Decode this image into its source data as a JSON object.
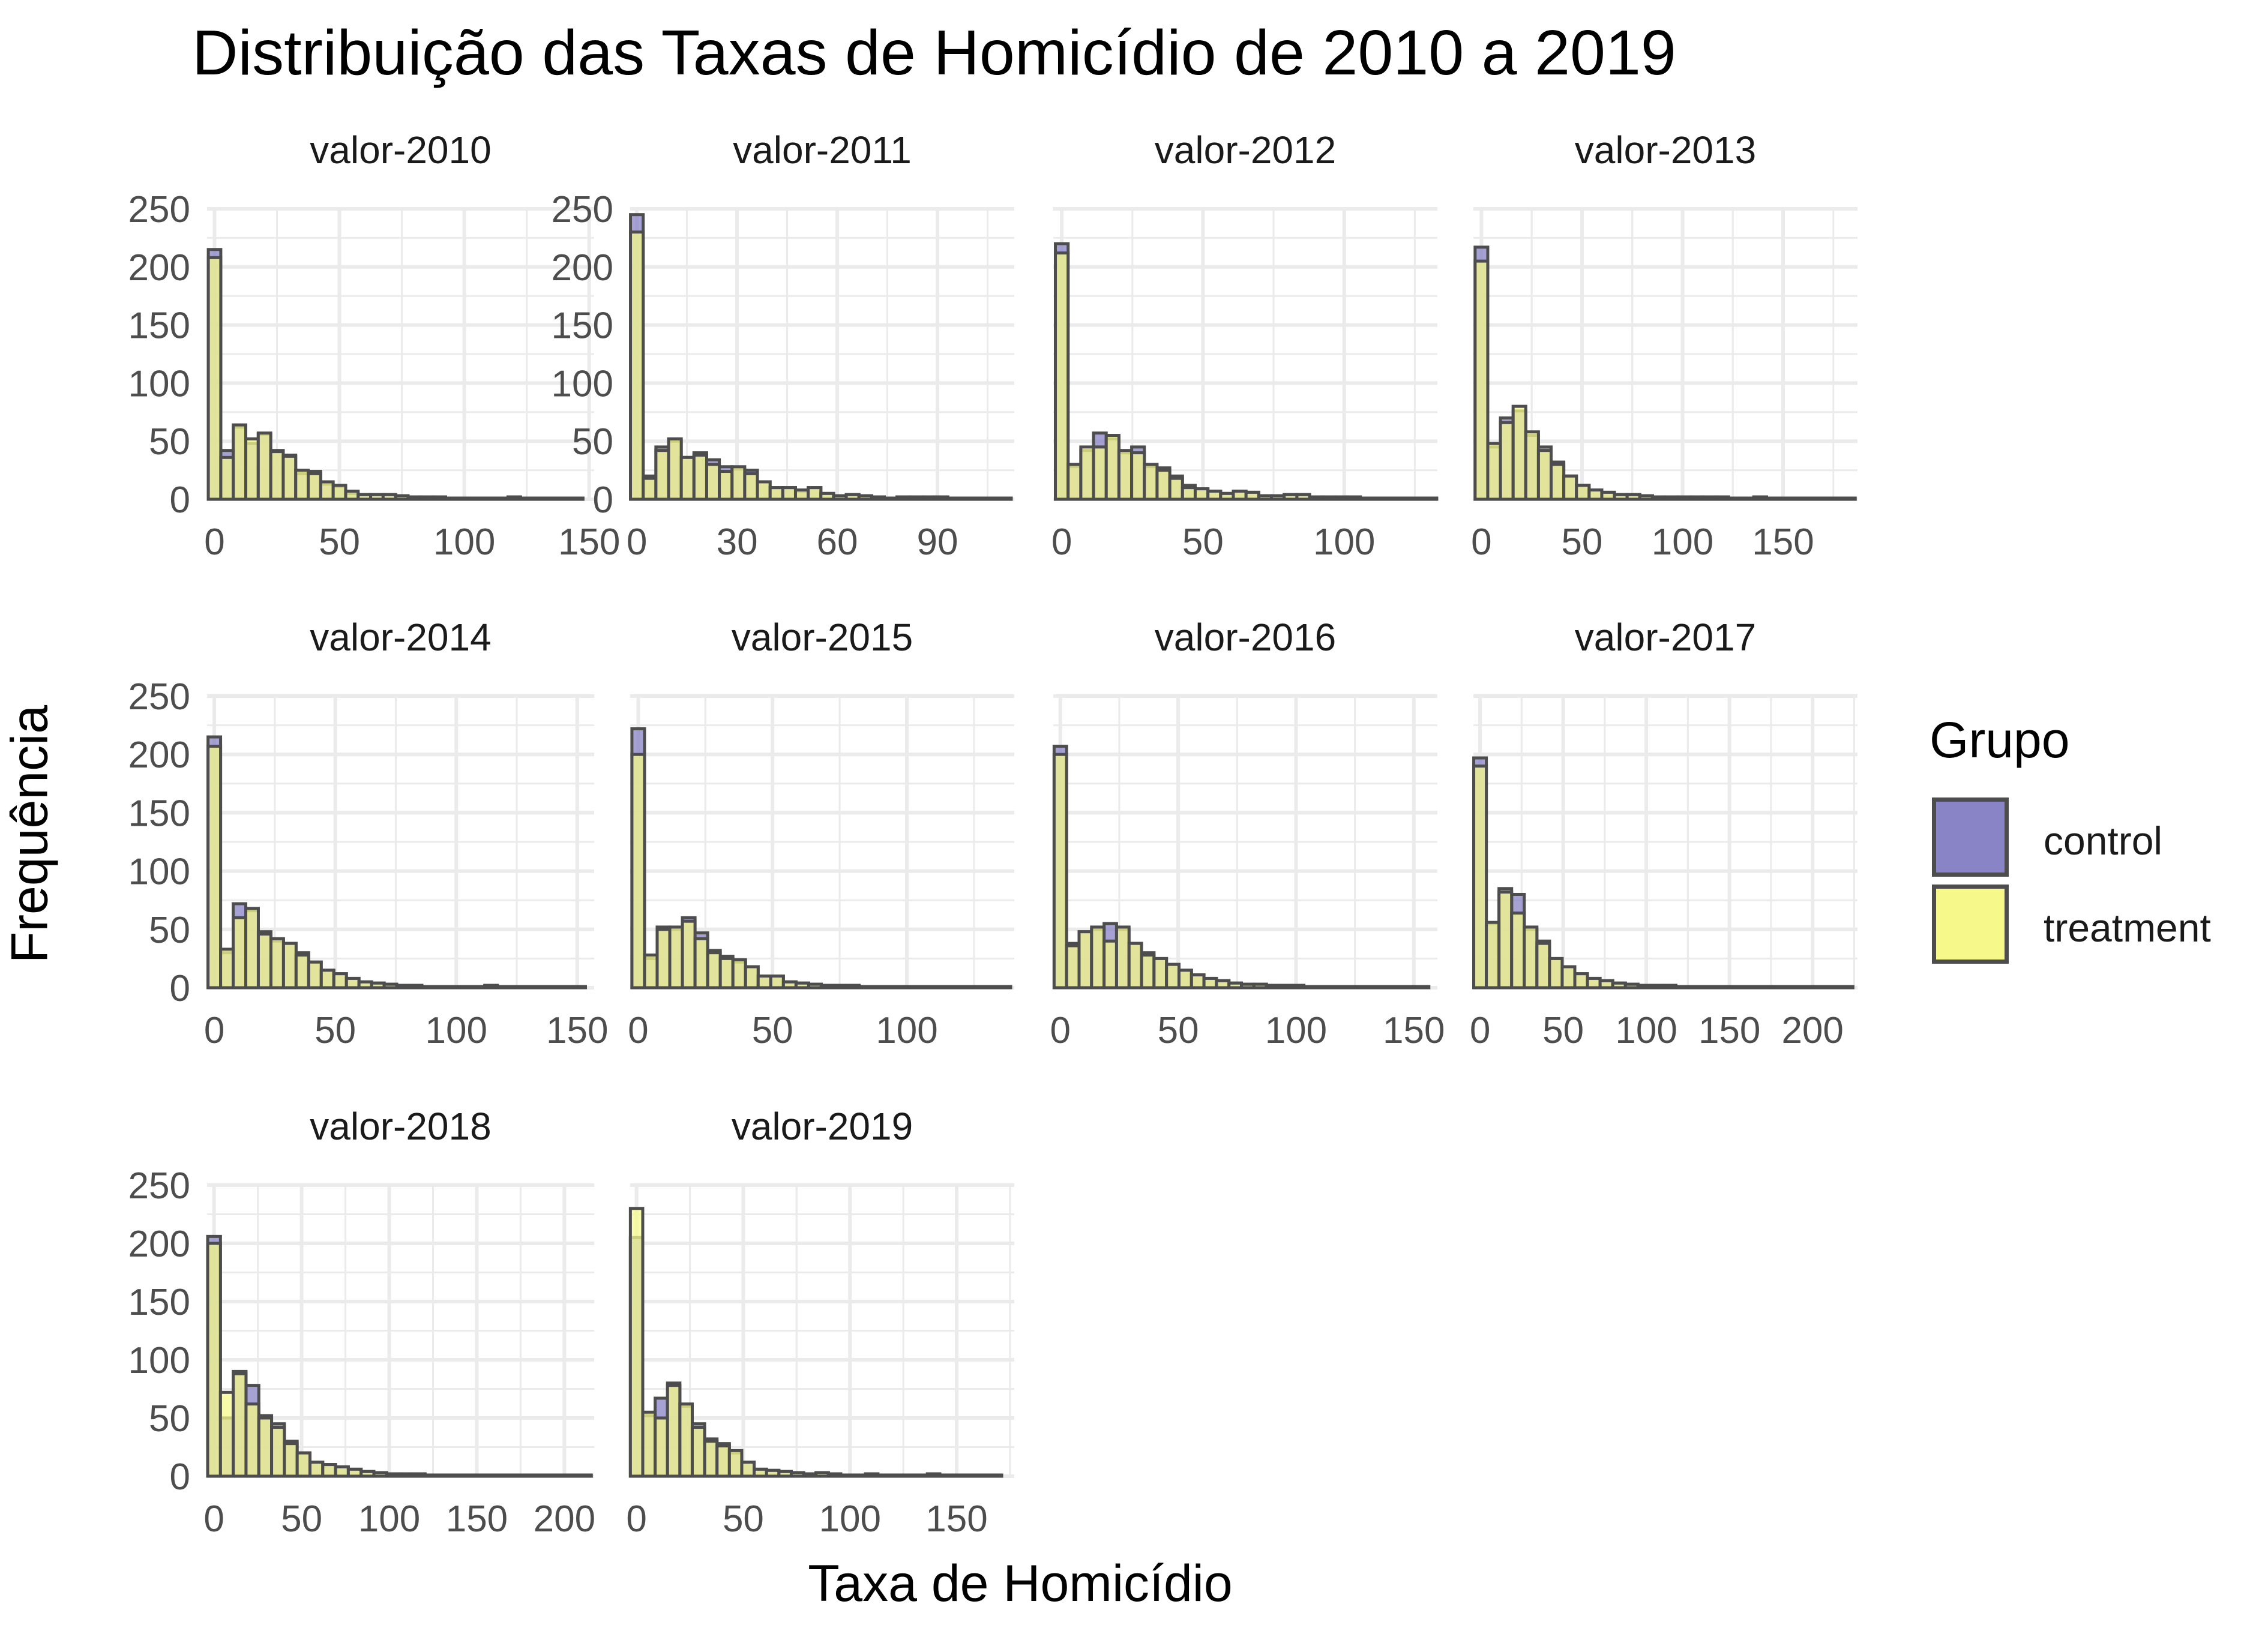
{
  "chart_data": {
    "type": "bar",
    "title": "Distribuição das Taxas de Homicídio de 2010 a 2019",
    "xlabel": "Taxa de Homicídio",
    "ylabel": "Frequência",
    "legend": {
      "title": "Grupo",
      "position": "right",
      "entries": [
        {
          "name": "control",
          "color": "#8884C6"
        },
        {
          "name": "treatment",
          "color": "#F6F98A"
        }
      ]
    },
    "colors": {
      "control": "#8884C6",
      "treatment": "#F6F98A",
      "overlap": "#B0B266",
      "outline": "#4D4D4D",
      "grid": "#EBEBEB"
    },
    "grid": true,
    "ylim": [
      0,
      250
    ],
    "yticks": [
      0,
      50,
      100,
      150,
      200,
      250
    ],
    "facets": [
      {
        "label": "valor-2010",
        "xlim": [
          -3,
          152
        ],
        "xticks": [
          0,
          50,
          100,
          150
        ],
        "bin_width": 5.0,
        "control": [
          215,
          42,
          62,
          48,
          56,
          42,
          38,
          22,
          24,
          13,
          11,
          5,
          4,
          4,
          4,
          3,
          2,
          2,
          2,
          1,
          1,
          1,
          1,
          1,
          2,
          1,
          1,
          1,
          1,
          1
        ],
        "treatment": [
          208,
          36,
          64,
          52,
          57,
          41,
          37,
          25,
          22,
          15,
          12,
          7,
          4,
          4,
          4,
          3,
          2,
          2,
          2,
          1,
          1,
          1,
          1,
          1,
          2,
          1,
          1,
          1,
          1,
          1
        ]
      },
      {
        "label": "valor-2011",
        "xlim": [
          -2,
          113
        ],
        "xticks": [
          0,
          30,
          60,
          90
        ],
        "bin_width": 3.8,
        "control": [
          245,
          20,
          45,
          50,
          36,
          40,
          34,
          28,
          26,
          25,
          15,
          10,
          10,
          7,
          10,
          5,
          3,
          4,
          3,
          2,
          1,
          2,
          2,
          2,
          2,
          1,
          1,
          1,
          1,
          1
        ],
        "treatment": [
          230,
          18,
          42,
          52,
          36,
          38,
          30,
          24,
          28,
          22,
          15,
          10,
          10,
          8,
          10,
          5,
          3,
          4,
          3,
          2,
          1,
          2,
          2,
          2,
          2,
          1,
          1,
          1,
          1,
          1
        ]
      },
      {
        "label": "valor-2012",
        "xlim": [
          -3,
          133
        ],
        "xticks": [
          0,
          50,
          100
        ],
        "bin_width": 4.5,
        "control": [
          220,
          28,
          42,
          57,
          52,
          40,
          45,
          28,
          27,
          20,
          12,
          9,
          7,
          5,
          7,
          6,
          3,
          3,
          4,
          4,
          2,
          2,
          2,
          2,
          1,
          1,
          1,
          1,
          1,
          1
        ],
        "treatment": [
          212,
          30,
          45,
          45,
          55,
          42,
          40,
          30,
          25,
          18,
          10,
          9,
          7,
          5,
          7,
          6,
          3,
          3,
          4,
          4,
          2,
          2,
          2,
          2,
          1,
          1,
          1,
          1,
          1,
          1
        ],
        "y_axis_labels_hidden": true
      },
      {
        "label": "valor-2013",
        "xlim": [
          -4,
          187
        ],
        "xticks": [
          0,
          50,
          100,
          150
        ],
        "bin_width": 6.3,
        "control": [
          217,
          45,
          70,
          76,
          55,
          45,
          32,
          20,
          12,
          8,
          6,
          4,
          4,
          3,
          2,
          2,
          2,
          2,
          2,
          2,
          1,
          1,
          2,
          1,
          1,
          1,
          1,
          1,
          1,
          1
        ],
        "treatment": [
          205,
          48,
          66,
          80,
          58,
          42,
          30,
          20,
          12,
          8,
          6,
          4,
          4,
          3,
          2,
          2,
          2,
          2,
          2,
          2,
          1,
          1,
          2,
          1,
          1,
          1,
          1,
          1,
          1,
          1
        ],
        "y_axis_labels_hidden": true
      },
      {
        "label": "valor-2014",
        "xlim": [
          -3,
          157
        ],
        "xticks": [
          0,
          50,
          100,
          150
        ],
        "bin_width": 5.2,
        "control": [
          215,
          30,
          72,
          66,
          48,
          40,
          38,
          30,
          22,
          15,
          12,
          8,
          5,
          4,
          3,
          2,
          2,
          1,
          1,
          1,
          1,
          1,
          2,
          1,
          1,
          1,
          1,
          1,
          1,
          1
        ],
        "treatment": [
          207,
          33,
          60,
          68,
          46,
          42,
          38,
          28,
          22,
          15,
          12,
          8,
          5,
          4,
          3,
          2,
          2,
          1,
          1,
          1,
          1,
          1,
          2,
          1,
          1,
          1,
          1,
          1,
          1,
          1
        ]
      },
      {
        "label": "valor-2015",
        "xlim": [
          -3,
          140
        ],
        "xticks": [
          0,
          50,
          100
        ],
        "bin_width": 4.7,
        "control": [
          222,
          25,
          52,
          50,
          60,
          47,
          32,
          27,
          22,
          18,
          10,
          10,
          5,
          4,
          3,
          2,
          2,
          2,
          1,
          1,
          1,
          1,
          1,
          1,
          1,
          1,
          1,
          1,
          1,
          1
        ],
        "treatment": [
          200,
          28,
          50,
          52,
          57,
          42,
          30,
          25,
          24,
          18,
          10,
          10,
          5,
          4,
          3,
          2,
          2,
          2,
          1,
          1,
          1,
          1,
          1,
          1,
          1,
          1,
          1,
          1,
          1,
          1
        ],
        "y_axis_labels_hidden": true
      },
      {
        "label": "valor-2016",
        "xlim": [
          -3,
          160
        ],
        "xticks": [
          0,
          50,
          100,
          150
        ],
        "bin_width": 5.3,
        "control": [
          207,
          38,
          48,
          50,
          55,
          50,
          38,
          30,
          25,
          20,
          15,
          11,
          8,
          6,
          4,
          3,
          3,
          2,
          2,
          2,
          1,
          1,
          1,
          1,
          1,
          1,
          1,
          1,
          1,
          1
        ],
        "treatment": [
          200,
          36,
          48,
          52,
          40,
          52,
          38,
          28,
          25,
          20,
          15,
          11,
          8,
          6,
          4,
          3,
          3,
          2,
          2,
          2,
          1,
          1,
          1,
          1,
          1,
          1,
          1,
          1,
          1,
          1
        ],
        "y_axis_labels_hidden": true
      },
      {
        "label": "valor-2017",
        "xlim": [
          -4,
          227
        ],
        "xticks": [
          0,
          50,
          100,
          150,
          200
        ],
        "bin_width": 7.6,
        "control": [
          197,
          55,
          85,
          80,
          50,
          40,
          25,
          18,
          12,
          8,
          6,
          4,
          3,
          2,
          2,
          2,
          1,
          1,
          1,
          1,
          1,
          1,
          1,
          1,
          1,
          1,
          1,
          1,
          1,
          1
        ],
        "treatment": [
          190,
          56,
          82,
          64,
          52,
          38,
          25,
          18,
          12,
          8,
          6,
          4,
          3,
          2,
          2,
          2,
          1,
          1,
          1,
          1,
          1,
          1,
          1,
          1,
          1,
          1,
          1,
          1,
          1,
          1
        ],
        "y_axis_labels_hidden": true
      },
      {
        "label": "valor-2018",
        "xlim": [
          -4,
          217
        ],
        "xticks": [
          0,
          50,
          100,
          150,
          200
        ],
        "bin_width": 7.3,
        "control": [
          206,
          50,
          90,
          78,
          52,
          45,
          30,
          20,
          12,
          10,
          8,
          6,
          4,
          3,
          2,
          2,
          2,
          1,
          1,
          1,
          1,
          1,
          1,
          1,
          1,
          1,
          1,
          1,
          1,
          1
        ],
        "treatment": [
          200,
          72,
          88,
          62,
          50,
          42,
          28,
          20,
          12,
          10,
          8,
          6,
          4,
          3,
          2,
          2,
          2,
          1,
          1,
          1,
          1,
          1,
          1,
          1,
          1,
          1,
          1,
          1,
          1,
          1
        ]
      },
      {
        "label": "valor-2019",
        "xlim": [
          -3,
          177
        ],
        "xticks": [
          0,
          50,
          100,
          150
        ],
        "bin_width": 5.8,
        "control": [
          205,
          52,
          67,
          80,
          60,
          45,
          32,
          28,
          20,
          12,
          6,
          5,
          4,
          3,
          2,
          3,
          2,
          1,
          1,
          2,
          1,
          1,
          1,
          1,
          2,
          1,
          1,
          1,
          1,
          1
        ],
        "treatment": [
          230,
          55,
          50,
          78,
          62,
          42,
          30,
          26,
          22,
          12,
          6,
          5,
          4,
          3,
          2,
          3,
          2,
          1,
          1,
          2,
          1,
          1,
          1,
          1,
          2,
          1,
          1,
          1,
          1,
          1
        ],
        "y_axis_labels_hidden": true
      }
    ]
  }
}
